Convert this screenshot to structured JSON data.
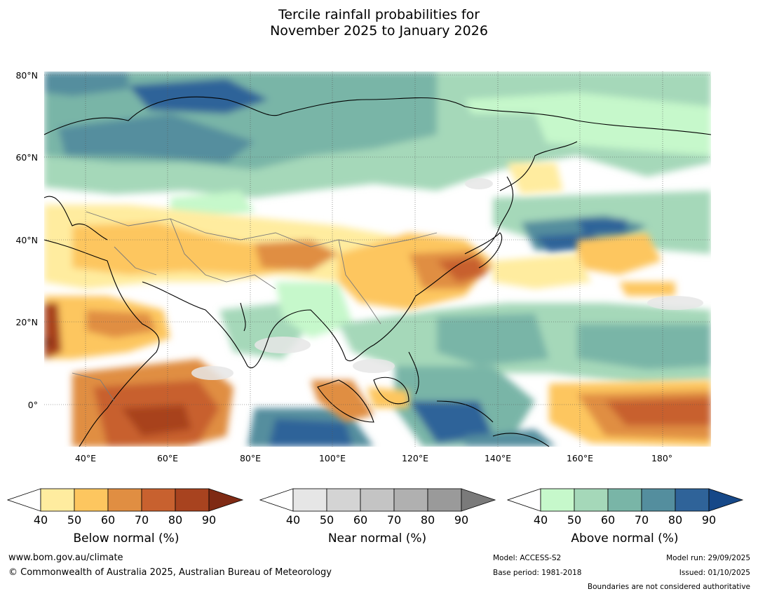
{
  "title": {
    "line1": "Tercile rainfall probabilities for",
    "line2": "November 2025 to January 2026"
  },
  "map": {
    "lat_labels": [
      "80°N",
      "60°N",
      "40°N",
      "20°N",
      "0°"
    ],
    "lon_labels": [
      "40°E",
      "60°E",
      "80°E",
      "100°E",
      "120°E",
      "140°E",
      "160°E",
      "180°"
    ]
  },
  "legends": [
    {
      "name": "below",
      "title": "Below normal (%)",
      "ticks": [
        "40",
        "50",
        "60",
        "70",
        "80",
        "90"
      ],
      "colors": [
        "#ffffff",
        "#ffec9f",
        "#fdc65f",
        "#e08e42",
        "#c8612f",
        "#a8431f",
        "#7f2a14"
      ]
    },
    {
      "name": "near",
      "title": "Near normal (%)",
      "ticks": [
        "40",
        "50",
        "60",
        "70",
        "80",
        "90"
      ],
      "colors": [
        "#ffffff",
        "#e6e6e6",
        "#d4d4d4",
        "#c4c4c4",
        "#b0b0b0",
        "#9a9a9a",
        "#7a7a7a"
      ]
    },
    {
      "name": "above",
      "title": "Above normal (%)",
      "ticks": [
        "40",
        "50",
        "60",
        "70",
        "80",
        "90"
      ],
      "colors": [
        "#ffffff",
        "#c6f8cb",
        "#a5d8b9",
        "#79b5a7",
        "#548e9e",
        "#2f6399",
        "#164888"
      ]
    }
  ],
  "footer": {
    "website": "www.bom.gov.au/climate",
    "copyright": "© Commonwealth of Australia 2025, Australian Bureau of Meteorology",
    "model": "Model: ACCESS-S2",
    "base_period": "Base period: 1981-2018",
    "model_run": "Model run: 29/09/2025",
    "issued": "Issued: 01/10/2025",
    "disclaimer": "Boundaries are not considered authoritative"
  }
}
